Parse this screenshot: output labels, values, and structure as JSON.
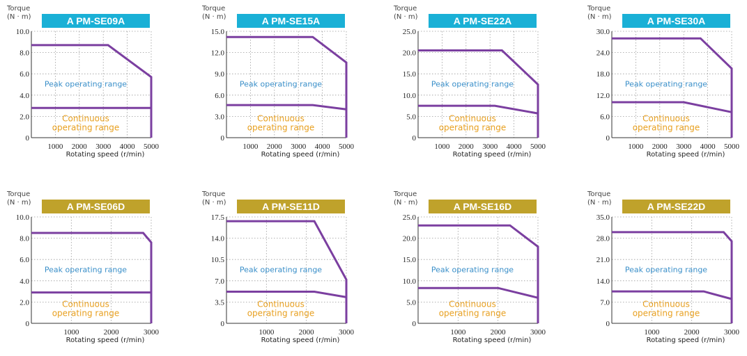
{
  "axis_label_torque": "Torque",
  "axis_label_unit": "(N · m)",
  "axis_label_speed": "Rotating speed (r/min)",
  "region_peak": "Peak operating range",
  "region_continuous_line1": "Continuous",
  "region_continuous_line2": "operating range",
  "colors": {
    "curve": "#7b3fa0",
    "title_se_a": "#1ab0d6",
    "title_se_d": "#bfa22b",
    "peak_text": "#3a8fc9",
    "continuous_text": "#e8a020",
    "grid": "#9a9a9a"
  },
  "chart_data": [
    {
      "type": "line",
      "title": "A PM-SE09A",
      "title_color": "blue",
      "xlim": [
        0,
        5000
      ],
      "xticks": [
        "1000",
        "2000",
        "3000",
        "4000",
        "5000"
      ],
      "xtick_values": [
        1000,
        2000,
        3000,
        4000,
        5000
      ],
      "ylim": [
        0,
        10
      ],
      "yticks": [
        "0",
        "2.0",
        "4.0",
        "6.0",
        "8.0",
        "10.0"
      ],
      "ytick_values": [
        0,
        2,
        4,
        6,
        8,
        10
      ],
      "series": [
        {
          "x": [
            0,
            3200,
            5000,
            5000
          ],
          "y": [
            8.7,
            8.7,
            5.7,
            0
          ]
        },
        {
          "x": [
            0,
            5000
          ],
          "y": [
            2.8,
            2.8
          ]
        }
      ]
    },
    {
      "type": "line",
      "title": "A PM-SE15A",
      "title_color": "blue",
      "xlim": [
        0,
        5000
      ],
      "xticks": [
        "1000",
        "2000",
        "3000",
        "4000",
        "5000"
      ],
      "xtick_values": [
        1000,
        2000,
        3000,
        4000,
        5000
      ],
      "ylim": [
        0,
        15
      ],
      "yticks": [
        "0",
        "3.0",
        "6.0",
        "9.0",
        "12.0",
        "15.0"
      ],
      "ytick_values": [
        0,
        3,
        6,
        9,
        12,
        15
      ],
      "series": [
        {
          "x": [
            0,
            3600,
            5000,
            5000
          ],
          "y": [
            14.2,
            14.2,
            10.6,
            0
          ]
        },
        {
          "x": [
            0,
            3600,
            5000
          ],
          "y": [
            4.6,
            4.6,
            4.0
          ]
        }
      ]
    },
    {
      "type": "line",
      "title": "A PM-SE22A",
      "title_color": "blue",
      "xlim": [
        0,
        5000
      ],
      "xticks": [
        "1000",
        "2000",
        "3000",
        "4000",
        "5000"
      ],
      "xtick_values": [
        1000,
        2000,
        3000,
        4000,
        5000
      ],
      "ylim": [
        0,
        25
      ],
      "yticks": [
        "0",
        "5.0",
        "10.0",
        "15.0",
        "20.0",
        "25.0"
      ],
      "ytick_values": [
        0,
        5,
        10,
        15,
        20,
        25
      ],
      "series": [
        {
          "x": [
            0,
            3500,
            5000,
            5000
          ],
          "y": [
            20.5,
            20.5,
            12.5,
            0
          ]
        },
        {
          "x": [
            0,
            3200,
            5000
          ],
          "y": [
            7.5,
            7.5,
            5.7
          ]
        }
      ]
    },
    {
      "type": "line",
      "title": "A PM-SE30A",
      "title_color": "blue",
      "xlim": [
        0,
        5000
      ],
      "xticks": [
        "1000",
        "2000",
        "3000",
        "4000",
        "5000"
      ],
      "xtick_values": [
        1000,
        2000,
        3000,
        4000,
        5000
      ],
      "ylim": [
        0,
        30
      ],
      "yticks": [
        "0",
        "6.0",
        "12.0",
        "18.0",
        "24.0",
        "30.0"
      ],
      "ytick_values": [
        0,
        6,
        12,
        18,
        24,
        30
      ],
      "series": [
        {
          "x": [
            0,
            3700,
            5000,
            5000
          ],
          "y": [
            28.0,
            28.0,
            19.5,
            0
          ]
        },
        {
          "x": [
            0,
            3000,
            5000
          ],
          "y": [
            10.0,
            10.0,
            7.2
          ]
        }
      ]
    },
    {
      "type": "line",
      "title": "A PM-SE06D",
      "title_color": "gold",
      "xlim": [
        0,
        3000
      ],
      "xticks": [
        "1000",
        "2000",
        "3000"
      ],
      "xtick_values": [
        1000,
        2000,
        3000
      ],
      "ylim": [
        0,
        10
      ],
      "yticks": [
        "0",
        "2.0",
        "4.0",
        "6.0",
        "8.0",
        "10.0"
      ],
      "ytick_values": [
        0,
        2,
        4,
        6,
        8,
        10
      ],
      "series": [
        {
          "x": [
            0,
            2800,
            3000,
            3000
          ],
          "y": [
            8.5,
            8.5,
            7.6,
            0
          ]
        },
        {
          "x": [
            0,
            3000
          ],
          "y": [
            2.9,
            2.9
          ]
        }
      ]
    },
    {
      "type": "line",
      "title": "A PM-SE11D",
      "title_color": "gold",
      "xlim": [
        0,
        3000
      ],
      "xticks": [
        "1000",
        "2000",
        "3000"
      ],
      "xtick_values": [
        1000,
        2000,
        3000
      ],
      "ylim": [
        0,
        17.5
      ],
      "yticks": [
        "0",
        "3.5",
        "7.0",
        "10.5",
        "14.0",
        "17.5"
      ],
      "ytick_values": [
        0,
        3.5,
        7,
        10.5,
        14,
        17.5
      ],
      "series": [
        {
          "x": [
            0,
            2200,
            3000,
            3000
          ],
          "y": [
            16.8,
            16.8,
            7.2,
            0
          ]
        },
        {
          "x": [
            0,
            2200,
            3000
          ],
          "y": [
            5.2,
            5.2,
            4.3
          ]
        }
      ]
    },
    {
      "type": "line",
      "title": "A PM-SE16D",
      "title_color": "gold",
      "xlim": [
        0,
        3000
      ],
      "xticks": [
        "1000",
        "2000",
        "3000"
      ],
      "xtick_values": [
        1000,
        2000,
        3000
      ],
      "ylim": [
        0,
        25
      ],
      "yticks": [
        "0",
        "5.0",
        "10.0",
        "15.0",
        "20.0",
        "25.0"
      ],
      "ytick_values": [
        0,
        5,
        10,
        15,
        20,
        25
      ],
      "series": [
        {
          "x": [
            0,
            2300,
            3000,
            3000
          ],
          "y": [
            23.0,
            23.0,
            18.0,
            0
          ]
        },
        {
          "x": [
            0,
            2000,
            3000
          ],
          "y": [
            8.3,
            8.3,
            6.0
          ]
        }
      ]
    },
    {
      "type": "line",
      "title": "A PM-SE22D",
      "title_color": "gold",
      "xlim": [
        0,
        3000
      ],
      "xticks": [
        "1000",
        "2000",
        "3000"
      ],
      "xtick_values": [
        1000,
        2000,
        3000
      ],
      "ylim": [
        0,
        35
      ],
      "yticks": [
        "0",
        "7.0",
        "14.0",
        "21.0",
        "28.0",
        "35.0"
      ],
      "ytick_values": [
        0,
        7,
        14,
        21,
        28,
        35
      ],
      "series": [
        {
          "x": [
            0,
            2800,
            3000,
            3000
          ],
          "y": [
            30.0,
            30.0,
            27.0,
            0
          ]
        },
        {
          "x": [
            0,
            2300,
            3000
          ],
          "y": [
            10.5,
            10.5,
            8.0
          ]
        }
      ]
    }
  ]
}
